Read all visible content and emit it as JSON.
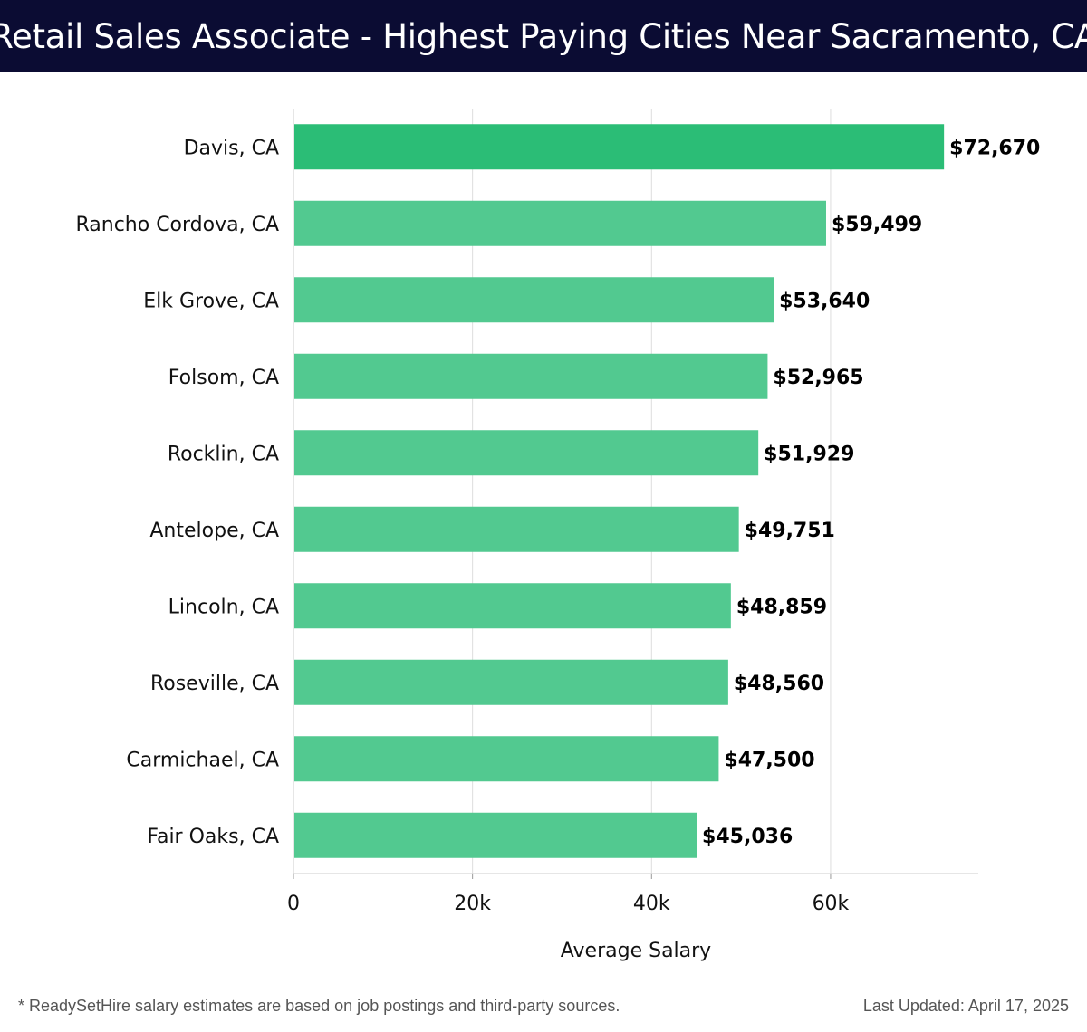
{
  "header": {
    "title": "Retail Sales Associate - Highest Paying Cities Near Sacramento, CA"
  },
  "colors": {
    "header_bg": "#0b0c33",
    "bar_top": "#2bbd76",
    "bar": "#52c990",
    "grid": "#dddddd",
    "label": "#111111"
  },
  "chart_data": {
    "type": "bar",
    "orientation": "horizontal",
    "categories": [
      "Davis, CA",
      "Rancho Cordova, CA",
      "Elk Grove, CA",
      "Folsom, CA",
      "Rocklin, CA",
      "Antelope, CA",
      "Lincoln, CA",
      "Roseville, CA",
      "Carmichael, CA",
      "Fair Oaks, CA"
    ],
    "values": [
      72670,
      59499,
      53640,
      52965,
      51929,
      49751,
      48859,
      48560,
      47500,
      45036
    ],
    "value_labels": [
      "$72,670",
      "$59,499",
      "$53,640",
      "$52,965",
      "$51,929",
      "$49,751",
      "$48,859",
      "$48,560",
      "$47,500",
      "$45,036"
    ],
    "xlabel": "Average Salary",
    "ylabel": "",
    "xlim": [
      0,
      76500
    ],
    "xticks": [
      0,
      20000,
      40000,
      60000
    ],
    "xtick_labels": [
      "0",
      "20k",
      "40k",
      "60k"
    ],
    "grid": "vertical"
  },
  "footer": {
    "note": "* ReadySetHire salary estimates are based on job postings and third-party sources.",
    "updated": "Last Updated: April 17, 2025"
  }
}
